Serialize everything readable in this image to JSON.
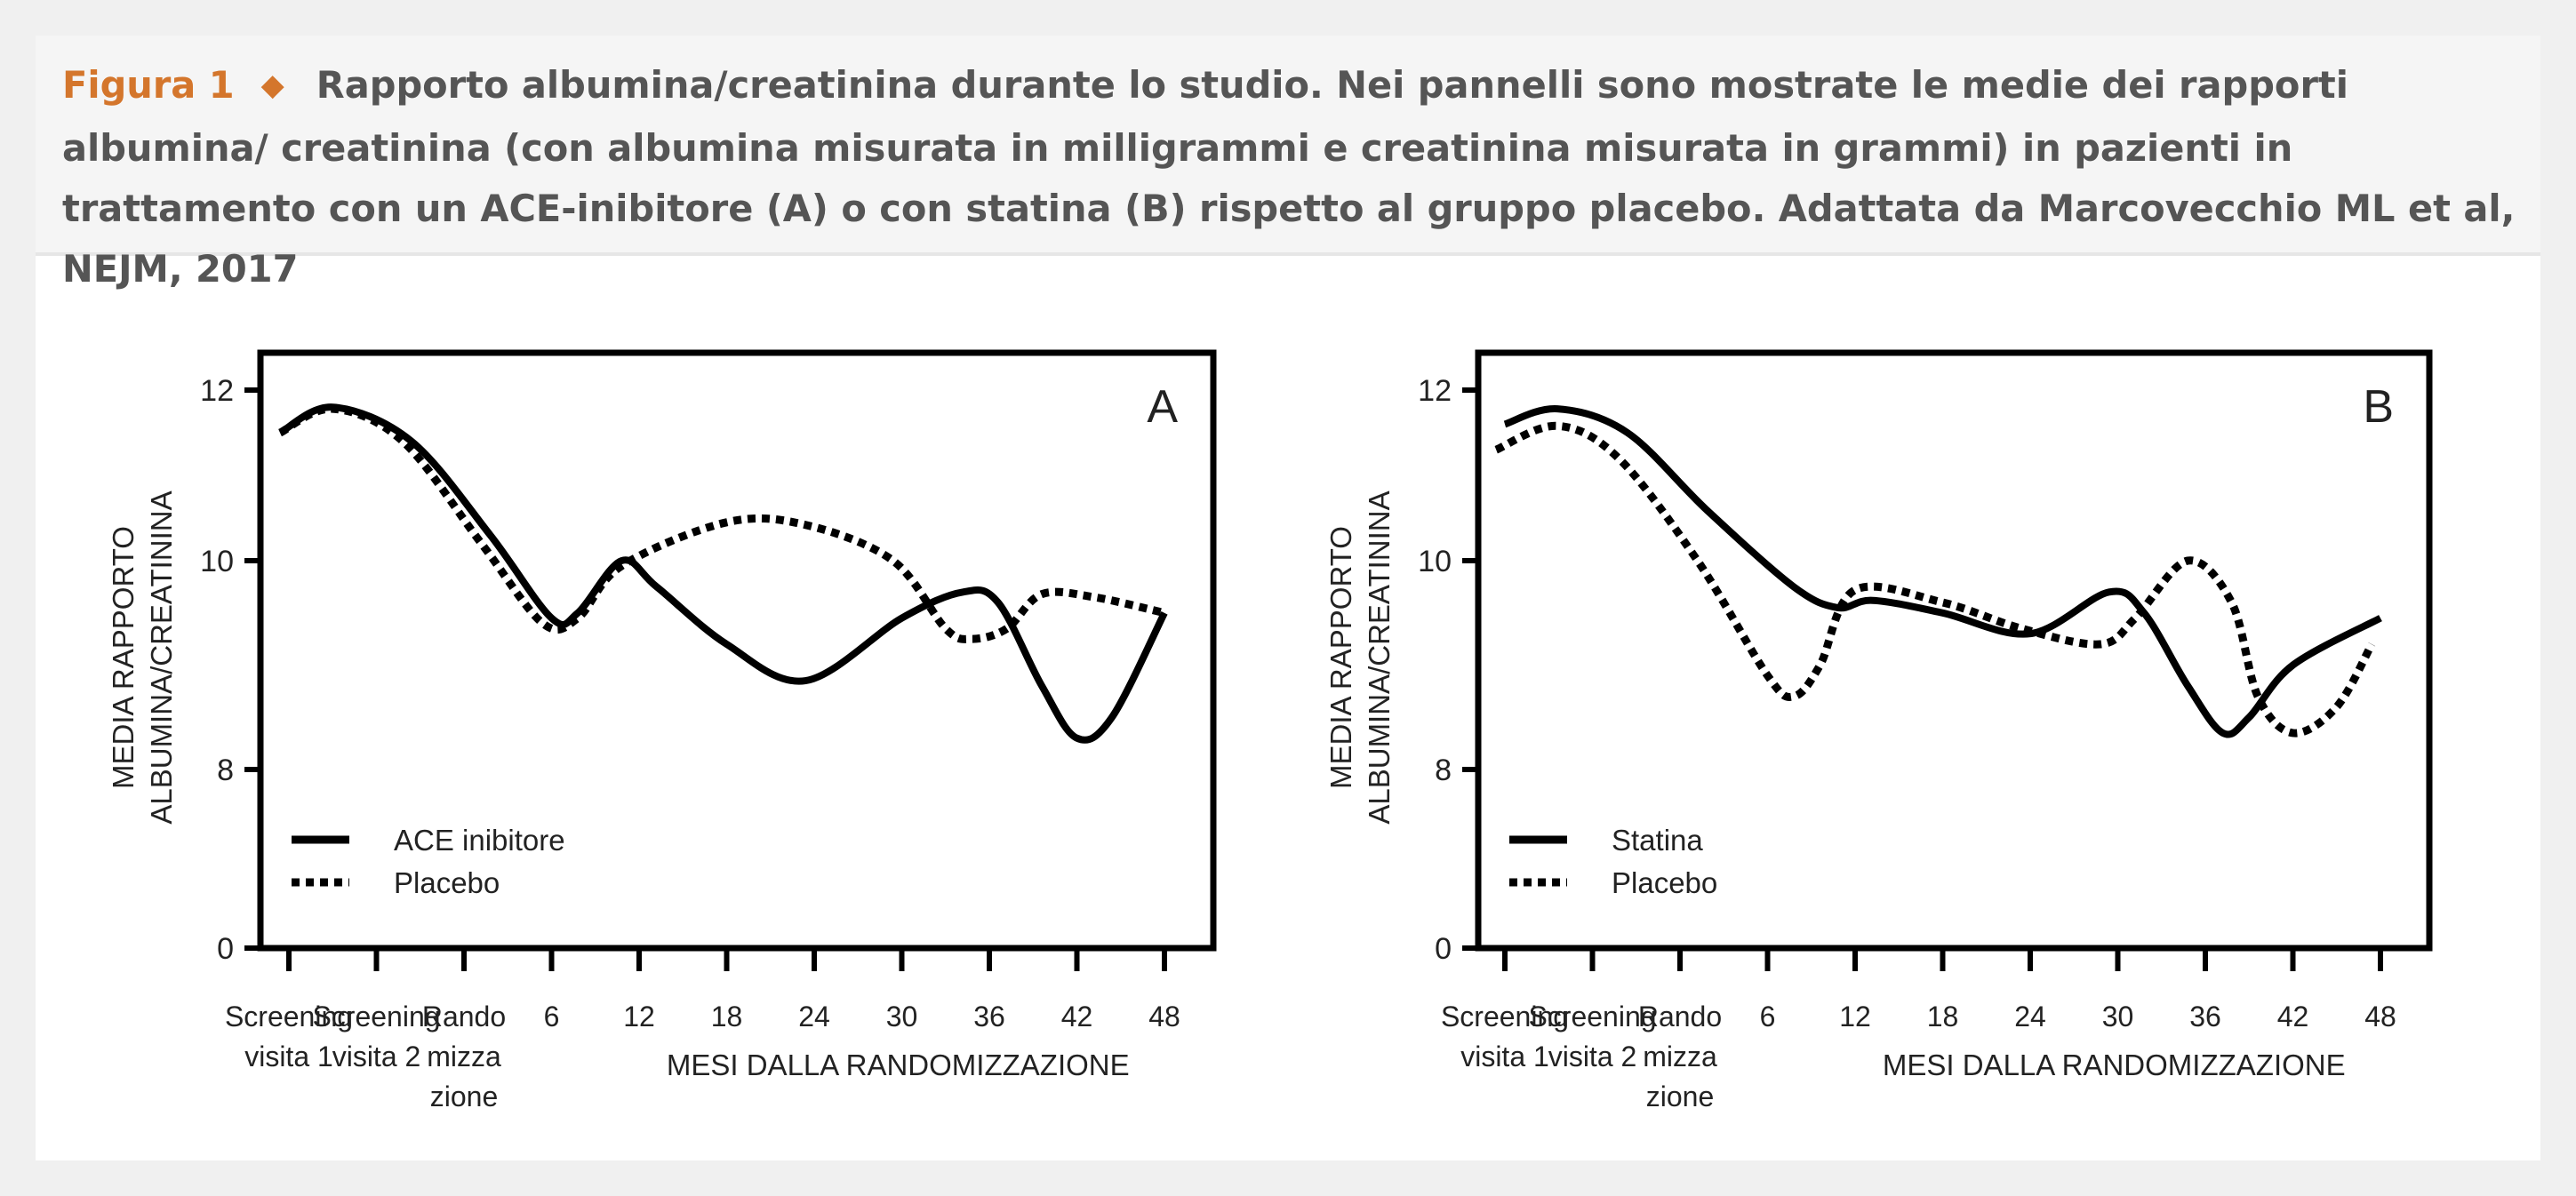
{
  "caption": {
    "figure_label": "Figura 1",
    "text": "Rapporto albumina/creatinina durante lo studio. Nei pannelli sono mostrate le medie dei rapporti albumina/ creatinina (con albumina misurata in milligrammi e creatinina misurata in grammi) in pazienti in trattamento con un ACE-inibitore (A) o con statina (B) rispetto al gruppo placebo. Adattata da Marcovecchio ML et al, NEJM, 2017"
  },
  "colors": {
    "accent": "#d4762c",
    "caption_text": "#555555",
    "line": "#000000"
  },
  "chart_data": [
    {
      "type": "line",
      "panel_label": "A",
      "ylabel": [
        "MEDIA RAPPORTO",
        "ALBUMINA/CREATININA"
      ],
      "xlabel": "MESI DALLA RANDOMIZZAZIONE",
      "categories": [
        [
          "Screening",
          "visita 1"
        ],
        [
          "Screening",
          "visita 2"
        ],
        [
          "Rando",
          "mizza",
          "zione"
        ],
        [
          "6"
        ],
        [
          "12"
        ],
        [
          "18"
        ],
        [
          "24"
        ],
        [
          "30"
        ],
        [
          "36"
        ],
        [
          "42"
        ],
        [
          "48"
        ]
      ],
      "yticks": [
        0,
        8,
        10,
        12
      ],
      "axis_break": true,
      "ylim": [
        0,
        12.4
      ],
      "legend_position": "bottom-left",
      "series": [
        {
          "name": "ACE inibitore",
          "style": "solid",
          "points": [
            [
              -0.1,
              11.5
            ],
            [
              0.5,
              11.8
            ],
            [
              1.4,
              11.4
            ],
            [
              2.3,
              10.3
            ],
            [
              3.0,
              9.45
            ],
            [
              3.3,
              9.5
            ],
            [
              3.8,
              10.0
            ],
            [
              4.2,
              9.75
            ],
            [
              5.0,
              9.2
            ],
            [
              5.9,
              8.85
            ],
            [
              7.0,
              9.45
            ],
            [
              7.7,
              9.7
            ],
            [
              8.1,
              9.6
            ],
            [
              8.6,
              8.8
            ],
            [
              9.0,
              8.3
            ],
            [
              9.4,
              8.5
            ],
            [
              10.0,
              9.5
            ]
          ]
        },
        {
          "name": "Placebo",
          "style": "dotted",
          "points": [
            [
              -0.1,
              11.5
            ],
            [
              0.5,
              11.78
            ],
            [
              1.3,
              11.4
            ],
            [
              2.2,
              10.2
            ],
            [
              2.9,
              9.4
            ],
            [
              3.3,
              9.45
            ],
            [
              3.8,
              9.95
            ],
            [
              5.0,
              10.45
            ],
            [
              5.9,
              10.42
            ],
            [
              6.9,
              10.0
            ],
            [
              7.5,
              9.35
            ],
            [
              7.8,
              9.25
            ],
            [
              8.2,
              9.35
            ],
            [
              8.6,
              9.68
            ],
            [
              9.2,
              9.65
            ],
            [
              10.0,
              9.5
            ]
          ]
        }
      ]
    },
    {
      "type": "line",
      "panel_label": "B",
      "ylabel": [
        "MEDIA RAPPORTO",
        "ALBUMINA/CREATININA"
      ],
      "xlabel": "MESI DALLA RANDOMIZZAZIONE",
      "categories": [
        [
          "Screening",
          "visita 1"
        ],
        [
          "Screening",
          "visita 2"
        ],
        [
          "Rando",
          "mizza",
          "zione"
        ],
        [
          "6"
        ],
        [
          "12"
        ],
        [
          "18"
        ],
        [
          "24"
        ],
        [
          "30"
        ],
        [
          "36"
        ],
        [
          "42"
        ],
        [
          "48"
        ]
      ],
      "yticks": [
        0,
        8,
        10,
        12
      ],
      "axis_break": true,
      "ylim": [
        0,
        12.4
      ],
      "legend_position": "bottom-left",
      "series": [
        {
          "name": "Statina",
          "style": "solid",
          "points": [
            [
              0.0,
              11.6
            ],
            [
              0.6,
              11.78
            ],
            [
              1.4,
              11.5
            ],
            [
              2.3,
              10.6
            ],
            [
              3.3,
              9.75
            ],
            [
              3.8,
              9.55
            ],
            [
              4.2,
              9.62
            ],
            [
              5.0,
              9.5
            ],
            [
              6.0,
              9.3
            ],
            [
              6.9,
              9.7
            ],
            [
              7.3,
              9.5
            ],
            [
              7.8,
              8.8
            ],
            [
              8.2,
              8.35
            ],
            [
              8.5,
              8.5
            ],
            [
              9.0,
              9.0
            ],
            [
              10.0,
              9.45
            ]
          ]
        },
        {
          "name": "Placebo",
          "style": "dotted",
          "points": [
            [
              -0.1,
              11.3
            ],
            [
              0.6,
              11.58
            ],
            [
              1.3,
              11.2
            ],
            [
              2.2,
              10.0
            ],
            [
              3.0,
              8.9
            ],
            [
              3.3,
              8.7
            ],
            [
              3.6,
              9.0
            ],
            [
              4.0,
              9.72
            ],
            [
              5.0,
              9.6
            ],
            [
              5.9,
              9.35
            ],
            [
              6.8,
              9.2
            ],
            [
              7.2,
              9.45
            ],
            [
              7.8,
              10.0
            ],
            [
              8.3,
              9.6
            ],
            [
              8.6,
              8.7
            ],
            [
              9.0,
              8.35
            ],
            [
              9.5,
              8.6
            ],
            [
              9.9,
              9.2
            ]
          ]
        }
      ]
    }
  ]
}
